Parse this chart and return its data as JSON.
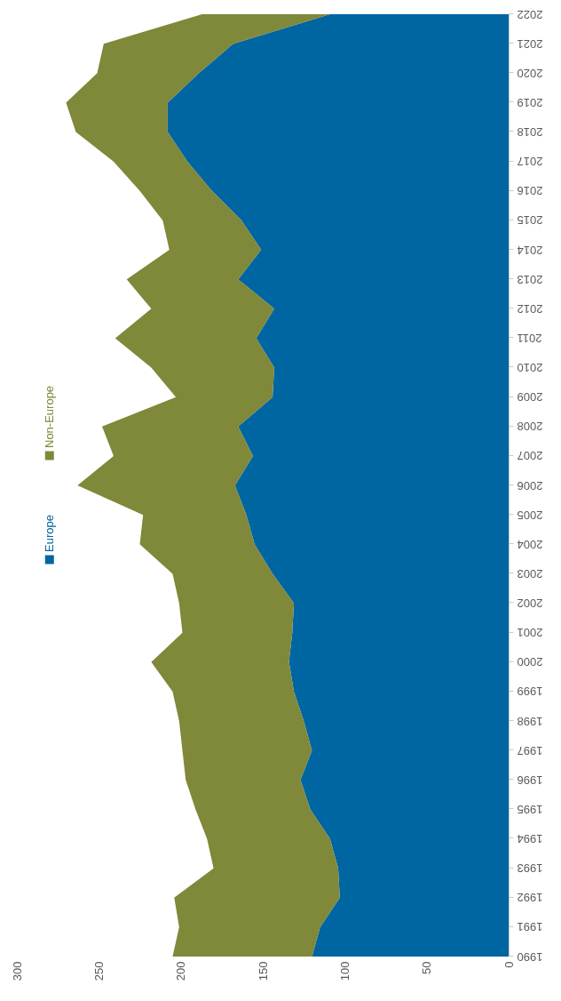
{
  "chart_data": {
    "type": "area",
    "stacked": true,
    "orientation": "horizontal",
    "legend": "left",
    "grid": false,
    "categories": [
      "2022",
      "2021",
      "2020",
      "2019",
      "2018",
      "2017",
      "2016",
      "2015",
      "2014",
      "2013",
      "2012",
      "2011",
      "2010",
      "2009",
      "2008",
      "2007",
      "2006",
      "2005",
      "2004",
      "2003",
      "2002",
      "2001",
      "2000",
      "1999",
      "1998",
      "1997",
      "1996",
      "1995",
      "1994",
      "1993",
      "1992",
      "1991",
      "1990"
    ],
    "series": [
      {
        "name": "Europe",
        "color": "#0066a1",
        "values": [
          109,
          168,
          189,
          208,
          208,
          196,
          181,
          163,
          151,
          165,
          143,
          154,
          143,
          144,
          165,
          156,
          167,
          160,
          155,
          144,
          131,
          132,
          134,
          131,
          125,
          120,
          127,
          121,
          109,
          104,
          103,
          115,
          120
        ]
      },
      {
        "name": "Non-Europe",
        "color": "#808839",
        "values": [
          78,
          79,
          62,
          62,
          56,
          45,
          44,
          48,
          56,
          68,
          75,
          86,
          75,
          59,
          83,
          85,
          96,
          63,
          70,
          61,
          70,
          67,
          84,
          74,
          76,
          79,
          70,
          70,
          75,
          76,
          101,
          86,
          85
        ]
      }
    ],
    "xlim": [
      300,
      0
    ],
    "xticks": [
      300,
      250,
      200,
      150,
      100,
      50,
      0
    ]
  }
}
